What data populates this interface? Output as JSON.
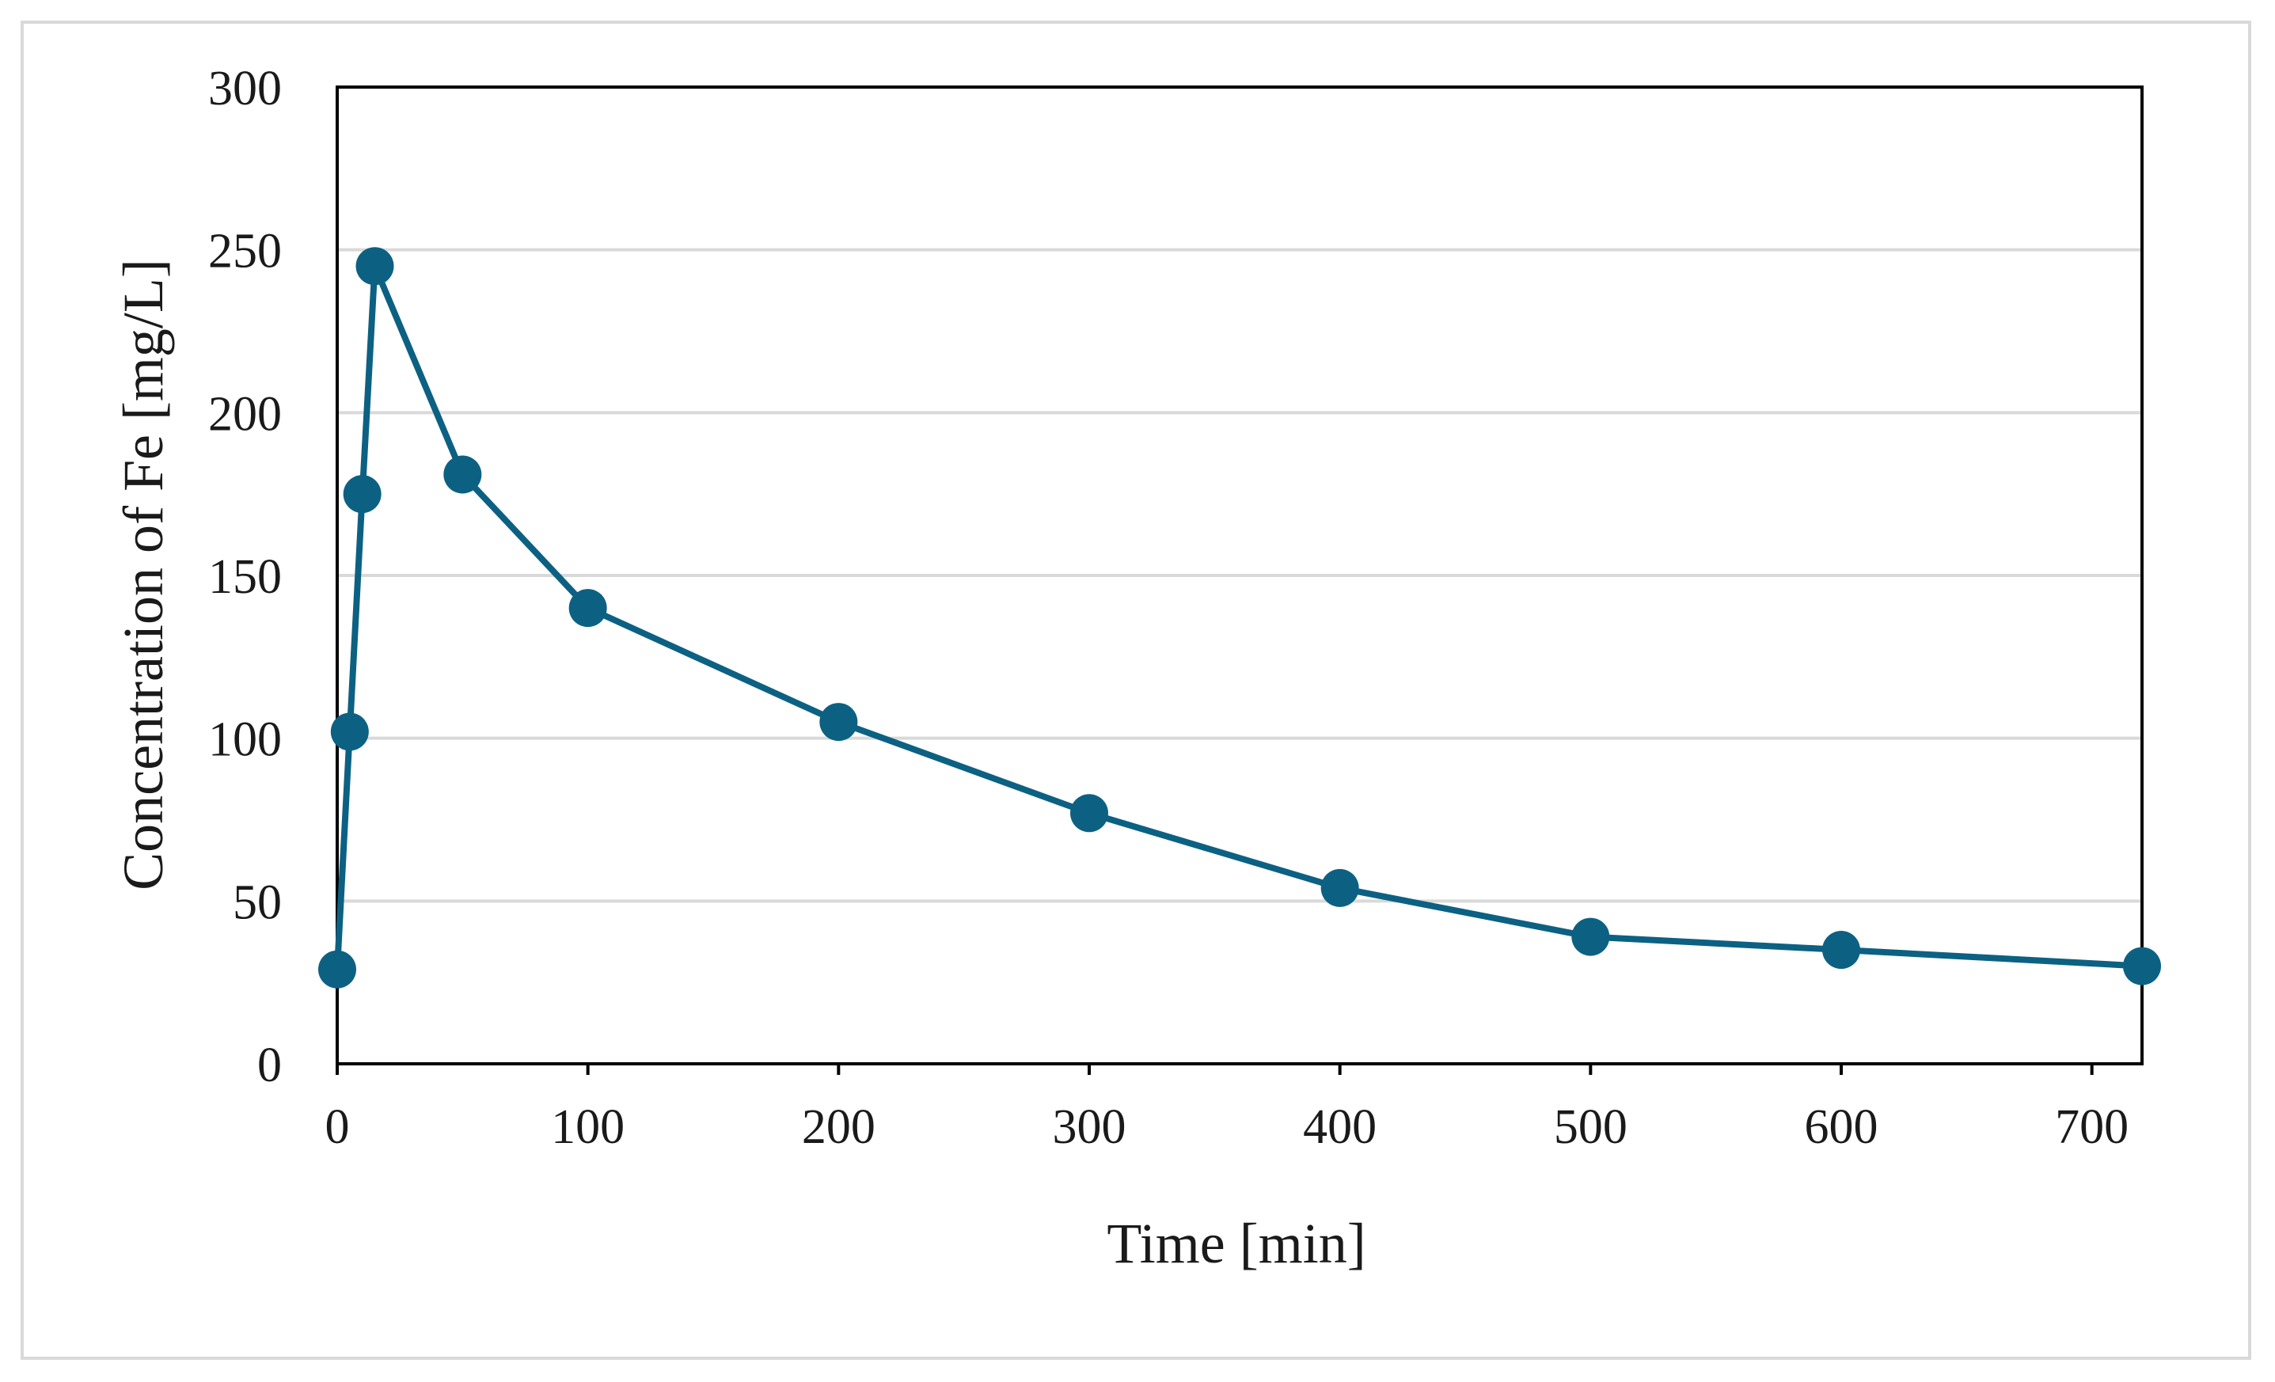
{
  "chart_data": {
    "type": "line",
    "title": "",
    "xlabel": "Time [min]",
    "ylabel": "Concentration of Fe [mg/L]",
    "xlim": [
      0,
      720
    ],
    "ylim": [
      0,
      300
    ],
    "xticks": [
      0,
      100,
      200,
      300,
      400,
      500,
      600,
      700
    ],
    "yticks": [
      0,
      50,
      100,
      150,
      200,
      250,
      300
    ],
    "grid": "horizontal",
    "legend": "none",
    "marker": "circle",
    "color": "#0c6183",
    "gridColor": "#d9d9d9",
    "series": [
      {
        "x": [
          0,
          5,
          10,
          15,
          50,
          100,
          200,
          300,
          400,
          500,
          600,
          720
        ],
        "y": [
          29,
          102,
          175,
          245,
          181,
          140,
          105,
          77,
          54,
          39,
          35,
          30
        ]
      }
    ]
  }
}
